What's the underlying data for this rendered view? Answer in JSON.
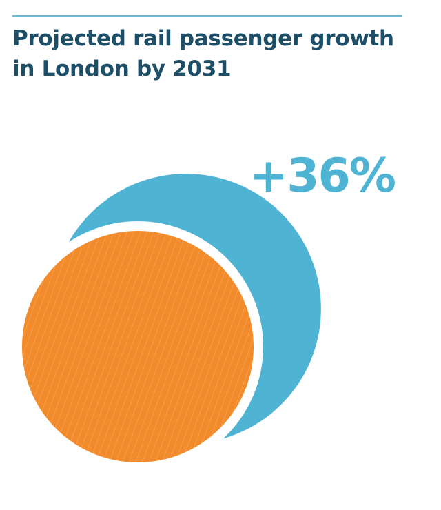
{
  "title_lines": [
    "Projected rail passenger growth",
    "in London by 2031"
  ],
  "colors": {
    "rule": "#6fb8cf",
    "title": "#1e4f68",
    "projected": "#4fb3d3",
    "current": "#f28b2b",
    "hatch": "#f7b679",
    "gap": "#ffffff"
  },
  "chart_data": {
    "type": "bubble",
    "title": "Projected rail passenger growth in London by 2031",
    "series": [
      {
        "value": 100
      },
      {
        "value": 136
      }
    ],
    "annotations": [
      {
        "text": "+36%",
        "value": 36,
        "unit": "%"
      }
    ]
  }
}
